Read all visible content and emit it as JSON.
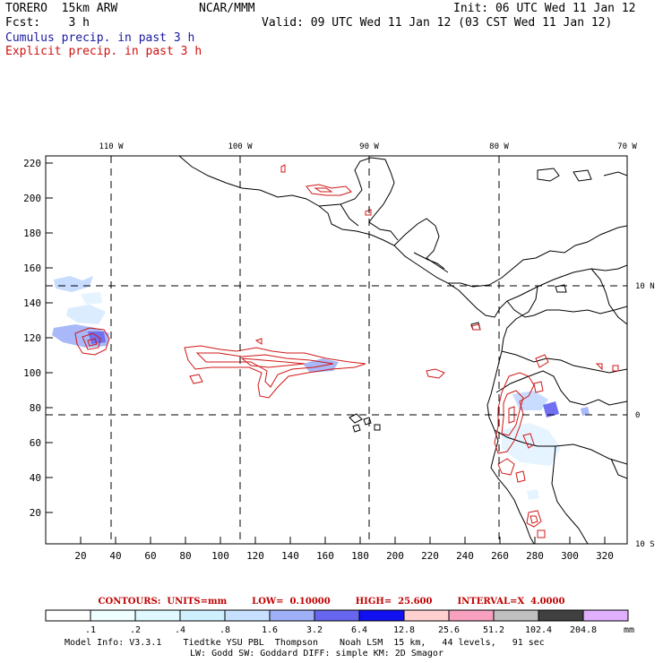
{
  "header": {
    "model": "TORERO  15km ARW",
    "center": "NCAR/MMM",
    "init": "Init: 06 UTC Wed 11 Jan 12",
    "fcst": "Fcst:    3 h",
    "valid": "Valid: 09 UTC Wed 11 Jan 12 (03 CST Wed 11 Jan 12)",
    "field1": "Cumulus precip. in past 3 h",
    "field2": "Explicit precip. in past 3 h"
  },
  "map": {
    "lon_labels": [
      "110 W",
      "100 W",
      "90 W",
      "80 W",
      "70 W"
    ],
    "lat_labels": [
      "10 N",
      "0",
      "10 S"
    ],
    "x_ticks": [
      "20",
      "40",
      "60",
      "80",
      "100",
      "120",
      "140",
      "160",
      "180",
      "200",
      "220",
      "240",
      "260",
      "280",
      "300",
      "320"
    ],
    "y_ticks": [
      "20",
      "40",
      "60",
      "80",
      "100",
      "120",
      "140",
      "160",
      "180",
      "200",
      "220"
    ]
  },
  "contours_info": {
    "units": "CONTOURS:  UNITS=mm",
    "low": "LOW=  0.10000",
    "high": "HIGH=  25.600",
    "interval": "INTERVAL=X  4.0000"
  },
  "colorbar": {
    "labels": [
      ".1",
      ".2",
      ".4",
      ".8",
      "1.6",
      "3.2",
      "6.4",
      "12.8",
      "25.6",
      "51.2",
      "102.4",
      "204.8"
    ],
    "unit": "mm",
    "colors": [
      "#ffffff",
      "#f0ffff",
      "#e0f8ff",
      "#d0f0ff",
      "#c8e0ff",
      "#a0b0f8",
      "#6666f0",
      "#1010f0",
      "#ffd0d0",
      "#f8a0c0",
      "#c0c0c0",
      "#404040",
      "#e0b0ff"
    ]
  },
  "footer": {
    "line1": "Model Info: V3.3.1    Tiedtke YSU PBL  Thompson    Noah LSM  15 km,   44 levels,   91 sec",
    "line2": "LW: Godd SW: Goddard DIFF: simple KM: 2D Smagor"
  }
}
